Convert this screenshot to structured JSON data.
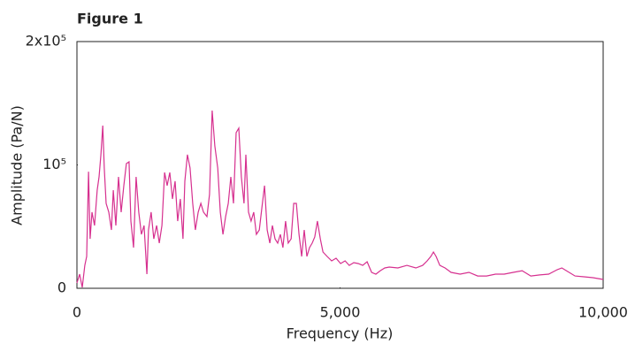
{
  "chart_data": {
    "type": "line",
    "title": "Figure 1",
    "x_label": "Frequency (Hz)",
    "y_label": "Amplitude (Pa/N)",
    "xlim": [
      0,
      10000
    ],
    "ylim": [
      0,
      200000
    ],
    "xticks": [
      0,
      {
        "value": 5000,
        "label": "5,000"
      },
      {
        "value": 10000,
        "label": "10,000"
      }
    ],
    "yticks": [
      0,
      {
        "value": 100000,
        "label": "10⁵"
      },
      {
        "value": 200000,
        "label": "2x10⁵"
      }
    ],
    "series": [
      {
        "color": "#d6308f",
        "x": [
          0,
          50,
          100,
          150,
          185,
          220,
          250,
          285,
          335,
          385,
          420,
          455,
          490,
          520,
          555,
          605,
          655,
          690,
          740,
          790,
          840,
          890,
          940,
          990,
          1025,
          1075,
          1125,
          1175,
          1225,
          1275,
          1330,
          1360,
          1410,
          1460,
          1515,
          1565,
          1615,
          1665,
          1715,
          1765,
          1815,
          1865,
          1915,
          1965,
          2015,
          2050,
          2100,
          2150,
          2200,
          2250,
          2305,
          2355,
          2405,
          2470,
          2520,
          2570,
          2620,
          2675,
          2725,
          2775,
          2825,
          2875,
          2925,
          2975,
          3025,
          3075,
          3125,
          3175,
          3210,
          3260,
          3310,
          3360,
          3410,
          3465,
          3515,
          3565,
          3615,
          3665,
          3715,
          3765,
          3815,
          3865,
          3915,
          3965,
          4015,
          4070,
          4120,
          4170,
          4220,
          4270,
          4320,
          4370,
          4420,
          4470,
          4520,
          4570,
          4625,
          4675,
          4755,
          4840,
          4925,
          5010,
          5095,
          5175,
          5260,
          5345,
          5430,
          5515,
          5600,
          5680,
          5765,
          5850,
          5935,
          6100,
          6270,
          6440,
          6570,
          6655,
          6725,
          6775,
          6825,
          6895,
          6995,
          7110,
          7280,
          7450,
          7615,
          7785,
          7955,
          8120,
          8290,
          8460,
          8625,
          8795,
          8965,
          9130,
          9215,
          9300,
          9465,
          9635,
          9805,
          10000
        ],
        "values": [
          4300,
          11500,
          700,
          18600,
          25800,
          94500,
          40100,
          61700,
          50900,
          79600,
          90300,
          108300,
          131900,
          97500,
          68800,
          61700,
          47300,
          79600,
          50900,
          90300,
          61700,
          83200,
          101100,
          102500,
          54500,
          33000,
          90300,
          61700,
          43700,
          50900,
          11500,
          47300,
          61700,
          40100,
          50900,
          36600,
          50900,
          93900,
          83200,
          93900,
          72400,
          86800,
          54500,
          72400,
          40100,
          86800,
          108300,
          97500,
          68800,
          47300,
          61700,
          68800,
          61700,
          58100,
          76000,
          144100,
          115400,
          97500,
          61700,
          43700,
          58100,
          68800,
          90300,
          68800,
          126200,
          129800,
          90300,
          68800,
          108300,
          61700,
          54500,
          61700,
          43700,
          47300,
          65200,
          83200,
          47300,
          36600,
          50900,
          40100,
          36600,
          43700,
          33000,
          54500,
          36600,
          40100,
          68800,
          68800,
          43700,
          25800,
          47300,
          25800,
          33000,
          36600,
          41600,
          54500,
          40100,
          29400,
          25800,
          22200,
          24400,
          20100,
          22200,
          18600,
          20800,
          20100,
          18600,
          21500,
          12900,
          11500,
          14300,
          16500,
          17200,
          16500,
          18600,
          16500,
          18600,
          22200,
          25800,
          29400,
          25800,
          18600,
          16500,
          12900,
          11500,
          12900,
          10000,
          10000,
          11500,
          11500,
          12900,
          14300,
          10000,
          10800,
          11500,
          15100,
          16500,
          14300,
          10000,
          9300,
          8600,
          7200
        ]
      }
    ]
  }
}
